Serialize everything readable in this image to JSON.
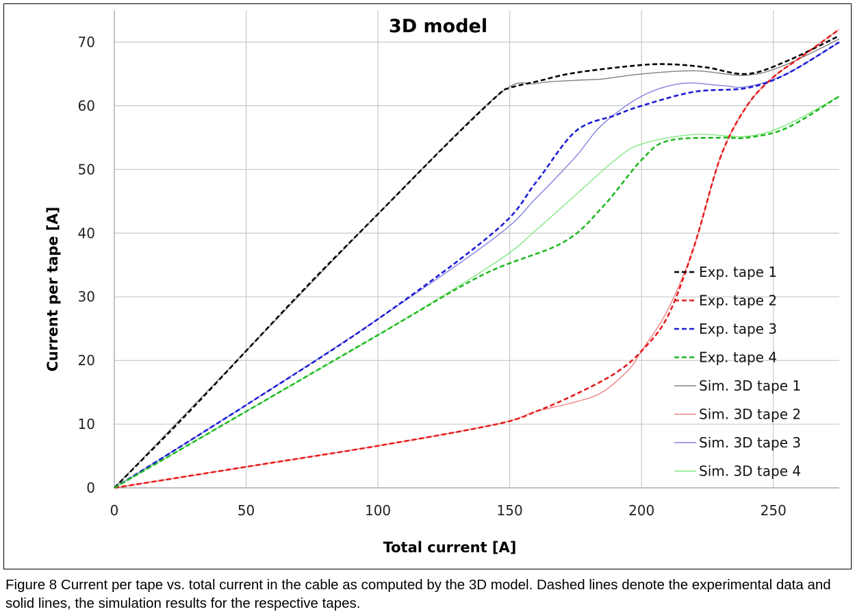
{
  "chart_data": {
    "type": "line",
    "title": "3D model",
    "xlabel": "Total current [A]",
    "ylabel": "Current per tape [A]",
    "xlim": [
      0,
      275
    ],
    "ylim": [
      0,
      75
    ],
    "x_ticks": [
      0,
      50,
      100,
      150,
      200,
      250
    ],
    "y_ticks": [
      0,
      10,
      20,
      30,
      40,
      50,
      60,
      70
    ],
    "grid": true,
    "legend_position": "right-middle",
    "series": [
      {
        "name": "Exp. tape 1",
        "style": "dashed",
        "color": "#000000",
        "x": [
          0,
          25,
          50,
          75,
          100,
          125,
          145,
          150,
          160,
          175,
          200,
          212,
          225,
          240,
          255,
          275
        ],
        "y": [
          0,
          10.5,
          21.5,
          32.5,
          43,
          53.5,
          61.5,
          62.8,
          63.8,
          65.2,
          66.4,
          66.5,
          66,
          65,
          67,
          71
        ]
      },
      {
        "name": "Exp. tape 2",
        "style": "dashed",
        "color": "#e41a1c",
        "x": [
          0,
          50,
          100,
          145,
          160,
          175,
          190,
          200,
          210,
          220,
          230,
          240,
          250,
          260,
          275
        ],
        "y": [
          0,
          3.3,
          6.6,
          10,
          12,
          14.7,
          18,
          21.5,
          27,
          38,
          52,
          60,
          64.5,
          67.5,
          72
        ]
      },
      {
        "name": "Exp. tape 3",
        "style": "dashed",
        "color": "#1a1ad6",
        "x": [
          0,
          50,
          100,
          145,
          160,
          175,
          190,
          200,
          220,
          240,
          255,
          275
        ],
        "y": [
          0,
          13,
          26.5,
          40.5,
          48,
          56,
          58.5,
          60,
          62.2,
          62.8,
          65,
          70
        ]
      },
      {
        "name": "Exp. tape 4",
        "style": "dashed",
        "color": "#1fb81f",
        "x": [
          0,
          50,
          100,
          140,
          170,
          185,
          200,
          210,
          230,
          240,
          255,
          275
        ],
        "y": [
          0,
          12,
          24,
          33.5,
          38.5,
          44,
          51.5,
          54.5,
          55,
          55,
          56.5,
          61.5
        ]
      },
      {
        "name": "Sim. 3D tape 1",
        "style": "solid",
        "color": "#808080",
        "x": [
          0,
          50,
          100,
          145,
          160,
          175,
          185,
          200,
          220,
          240,
          255,
          275
        ],
        "y": [
          0,
          21.5,
          43,
          61.5,
          63.5,
          64,
          64.2,
          65,
          65.5,
          64.8,
          66.5,
          70.5
        ]
      },
      {
        "name": "Sim. 3D tape 2",
        "style": "solid",
        "color": "#f08080",
        "x": [
          0,
          50,
          100,
          145,
          160,
          175,
          185,
          195,
          200,
          210,
          220,
          230,
          240,
          250,
          260,
          275
        ],
        "y": [
          0,
          3.3,
          6.6,
          10,
          12,
          13.5,
          15,
          18.5,
          21.5,
          28,
          38,
          52,
          60,
          64.5,
          67.5,
          72
        ]
      },
      {
        "name": "Sim. 3D tape 3",
        "style": "solid",
        "color": "#8080e0",
        "x": [
          0,
          50,
          100,
          145,
          160,
          175,
          185,
          200,
          215,
          230,
          240,
          255,
          275
        ],
        "y": [
          0,
          13,
          26.5,
          39.5,
          45.5,
          52,
          57,
          61.5,
          63.5,
          63.2,
          63,
          65,
          70
        ]
      },
      {
        "name": "Sim. 3D tape 4",
        "style": "solid",
        "color": "#80e880",
        "x": [
          0,
          50,
          100,
          145,
          160,
          175,
          190,
          200,
          220,
          240,
          255,
          275
        ],
        "y": [
          0,
          12,
          24,
          35.5,
          40.5,
          46,
          51.5,
          54,
          55.5,
          55.2,
          57,
          61.5
        ]
      }
    ]
  },
  "caption": {
    "text": "Figure 8 Current per tape vs. total current in the cable as computed by the 3D model. Dashed lines denote the experimental data and solid lines, the simulation results for the respective tapes."
  }
}
